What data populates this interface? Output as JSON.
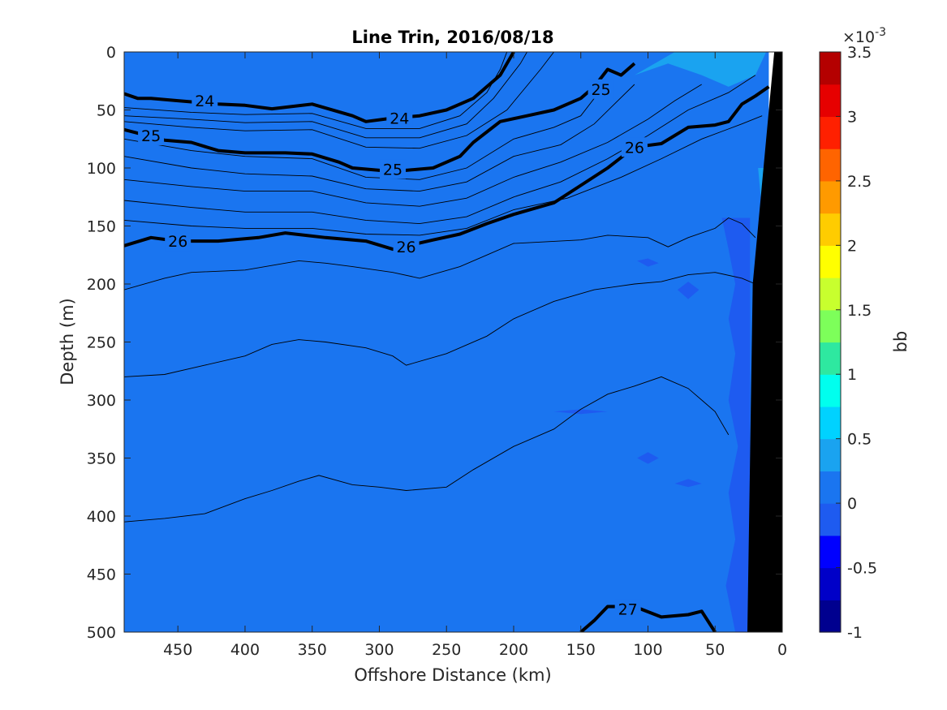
{
  "chart_data": {
    "type": "contour",
    "title": "Line Trin, 2016/08/18",
    "xlabel": "Offshore Distance (km)",
    "ylabel": "Depth (m)",
    "xlim": [
      490,
      0
    ],
    "ylim": [
      0,
      500
    ],
    "x_reversed": true,
    "y_reversed": true,
    "x_ticks": [
      "450",
      "400",
      "350",
      "300",
      "250",
      "200",
      "150",
      "100",
      "50",
      "0"
    ],
    "x_tick_values": [
      450,
      400,
      350,
      300,
      250,
      200,
      150,
      100,
      50,
      0
    ],
    "y_ticks": [
      "0",
      "50",
      "100",
      "150",
      "200",
      "250",
      "300",
      "350",
      "400",
      "450",
      "500"
    ],
    "y_tick_values": [
      0,
      50,
      100,
      150,
      200,
      250,
      300,
      350,
      400,
      450,
      500
    ],
    "background_fill_color": "#1a75f0",
    "colorbar": {
      "label": "bb",
      "exponent_label": "×10",
      "exponent_power": "-3",
      "ticks": [
        "3.5",
        "3",
        "2.5",
        "2",
        "1.5",
        "1",
        "0.5",
        "0",
        "-0.5",
        "-1"
      ],
      "tick_values": [
        3.5,
        3,
        2.5,
        2,
        1.5,
        1,
        0.5,
        0,
        -0.5,
        -1
      ],
      "range": [
        -1,
        3.5
      ],
      "band_colors": [
        "#00008f",
        "#0000c8",
        "#0000ff",
        "#1e5bf0",
        "#1a75f0",
        "#1aa3f0",
        "#00d2ff",
        "#00ffee",
        "#2ee8a0",
        "#7dff5a",
        "#c8ff2e",
        "#ffff00",
        "#ffcc00",
        "#ff9a00",
        "#ff6400",
        "#ff2000",
        "#e60000",
        "#b40000"
      ]
    },
    "bold_isopycnals": [
      {
        "label": "24",
        "points": [
          [
            490,
            36
          ],
          [
            480,
            40
          ],
          [
            470,
            40
          ],
          [
            450,
            42
          ],
          [
            420,
            45
          ],
          [
            400,
            46
          ],
          [
            380,
            49
          ],
          [
            350,
            45
          ],
          [
            320,
            55
          ],
          [
            310,
            60
          ],
          [
            290,
            57
          ],
          [
            270,
            55
          ],
          [
            250,
            50
          ],
          [
            230,
            40
          ],
          [
            210,
            20
          ],
          [
            200,
            0
          ]
        ]
      },
      {
        "label": "25",
        "points": [
          [
            490,
            67
          ],
          [
            480,
            70
          ],
          [
            460,
            76
          ],
          [
            440,
            78
          ],
          [
            420,
            85
          ],
          [
            400,
            87
          ],
          [
            370,
            87
          ],
          [
            350,
            88
          ],
          [
            330,
            95
          ],
          [
            320,
            100
          ],
          [
            300,
            102
          ],
          [
            280,
            102
          ],
          [
            260,
            100
          ],
          [
            240,
            90
          ],
          [
            230,
            78
          ],
          [
            210,
            60
          ],
          [
            190,
            55
          ],
          [
            170,
            50
          ],
          [
            150,
            40
          ],
          [
            140,
            30
          ],
          [
            130,
            15
          ],
          [
            120,
            20
          ],
          [
            110,
            10
          ]
        ]
      },
      {
        "label": "26",
        "points": [
          [
            490,
            167
          ],
          [
            470,
            160
          ],
          [
            450,
            163
          ],
          [
            420,
            163
          ],
          [
            390,
            160
          ],
          [
            370,
            156
          ],
          [
            340,
            160
          ],
          [
            310,
            163
          ],
          [
            290,
            170
          ],
          [
            260,
            162
          ],
          [
            240,
            157
          ],
          [
            220,
            148
          ],
          [
            200,
            140
          ],
          [
            170,
            130
          ],
          [
            150,
            115
          ],
          [
            130,
            100
          ],
          [
            110,
            82
          ],
          [
            90,
            79
          ],
          [
            70,
            65
          ],
          [
            50,
            63
          ],
          [
            40,
            60
          ],
          [
            30,
            45
          ],
          [
            20,
            38
          ],
          [
            10,
            30
          ]
        ]
      },
      {
        "label": "27",
        "points": [
          [
            150,
            500
          ],
          [
            140,
            490
          ],
          [
            130,
            478
          ],
          [
            110,
            478
          ],
          [
            90,
            487
          ],
          [
            70,
            485
          ],
          [
            60,
            482
          ],
          [
            50,
            500
          ]
        ]
      }
    ],
    "thin_isopycnals": [
      [
        [
          490,
          48
        ],
        [
          440,
          52
        ],
        [
          400,
          54
        ],
        [
          350,
          53
        ],
        [
          310,
          66
        ],
        [
          270,
          66
        ],
        [
          240,
          55
        ],
        [
          220,
          35
        ],
        [
          210,
          15
        ],
        [
          205,
          0
        ]
      ],
      [
        [
          490,
          55
        ],
        [
          440,
          58
        ],
        [
          400,
          61
        ],
        [
          350,
          60
        ],
        [
          310,
          74
        ],
        [
          270,
          74
        ],
        [
          235,
          62
        ],
        [
          215,
          40
        ],
        [
          195,
          10
        ],
        [
          190,
          0
        ]
      ],
      [
        [
          490,
          60
        ],
        [
          440,
          65
        ],
        [
          400,
          68
        ],
        [
          350,
          67
        ],
        [
          310,
          82
        ],
        [
          270,
          83
        ],
        [
          235,
          72
        ],
        [
          205,
          50
        ],
        [
          180,
          15
        ],
        [
          170,
          0
        ]
      ],
      [
        [
          490,
          75
        ],
        [
          440,
          85
        ],
        [
          400,
          90
        ],
        [
          350,
          92
        ],
        [
          310,
          108
        ],
        [
          270,
          110
        ],
        [
          235,
          100
        ],
        [
          200,
          75
        ],
        [
          170,
          65
        ],
        [
          150,
          55
        ],
        [
          140,
          40
        ]
      ],
      [
        [
          490,
          90
        ],
        [
          440,
          100
        ],
        [
          400,
          105
        ],
        [
          350,
          107
        ],
        [
          310,
          118
        ],
        [
          270,
          120
        ],
        [
          235,
          112
        ],
        [
          200,
          90
        ],
        [
          165,
          80
        ],
        [
          140,
          62
        ],
        [
          125,
          45
        ],
        [
          110,
          28
        ]
      ],
      [
        [
          490,
          110
        ],
        [
          440,
          116
        ],
        [
          400,
          120
        ],
        [
          350,
          120
        ],
        [
          310,
          130
        ],
        [
          270,
          133
        ],
        [
          235,
          126
        ],
        [
          200,
          108
        ],
        [
          165,
          95
        ],
        [
          130,
          78
        ],
        [
          100,
          58
        ],
        [
          80,
          42
        ],
        [
          60,
          28
        ]
      ],
      [
        [
          490,
          128
        ],
        [
          440,
          134
        ],
        [
          400,
          138
        ],
        [
          350,
          138
        ],
        [
          310,
          145
        ],
        [
          270,
          148
        ],
        [
          235,
          142
        ],
        [
          200,
          125
        ],
        [
          165,
          112
        ],
        [
          130,
          92
        ],
        [
          100,
          72
        ],
        [
          70,
          50
        ],
        [
          40,
          35
        ],
        [
          20,
          20
        ]
      ],
      [
        [
          490,
          145
        ],
        [
          440,
          150
        ],
        [
          400,
          152
        ],
        [
          350,
          152
        ],
        [
          310,
          157
        ],
        [
          270,
          158
        ],
        [
          235,
          152
        ],
        [
          200,
          136
        ],
        [
          160,
          126
        ],
        [
          120,
          108
        ],
        [
          90,
          92
        ],
        [
          60,
          75
        ],
        [
          30,
          62
        ],
        [
          15,
          55
        ]
      ],
      [
        [
          490,
          205
        ],
        [
          460,
          195
        ],
        [
          440,
          190
        ],
        [
          400,
          188
        ],
        [
          360,
          180
        ],
        [
          340,
          182
        ],
        [
          320,
          185
        ],
        [
          290,
          190
        ],
        [
          270,
          195
        ],
        [
          240,
          185
        ],
        [
          220,
          175
        ],
        [
          200,
          165
        ],
        [
          150,
          162
        ],
        [
          130,
          158
        ],
        [
          100,
          160
        ],
        [
          85,
          168
        ],
        [
          70,
          160
        ],
        [
          50,
          152
        ],
        [
          40,
          143
        ],
        [
          30,
          148
        ],
        [
          20,
          160
        ]
      ],
      [
        [
          490,
          280
        ],
        [
          460,
          278
        ],
        [
          430,
          270
        ],
        [
          400,
          262
        ],
        [
          380,
          252
        ],
        [
          360,
          248
        ],
        [
          340,
          250
        ],
        [
          310,
          255
        ],
        [
          290,
          262
        ],
        [
          280,
          270
        ],
        [
          250,
          260
        ],
        [
          220,
          245
        ],
        [
          200,
          230
        ],
        [
          170,
          215
        ],
        [
          140,
          205
        ],
        [
          110,
          200
        ],
        [
          90,
          198
        ],
        [
          70,
          192
        ],
        [
          50,
          190
        ],
        [
          30,
          195
        ],
        [
          20,
          200
        ]
      ],
      [
        [
          490,
          405
        ],
        [
          460,
          402
        ],
        [
          430,
          398
        ],
        [
          400,
          385
        ],
        [
          380,
          378
        ],
        [
          360,
          370
        ],
        [
          345,
          365
        ],
        [
          320,
          373
        ],
        [
          300,
          375
        ],
        [
          280,
          378
        ],
        [
          250,
          375
        ],
        [
          230,
          360
        ],
        [
          200,
          340
        ],
        [
          170,
          325
        ],
        [
          150,
          308
        ],
        [
          130,
          295
        ],
        [
          110,
          288
        ],
        [
          90,
          280
        ],
        [
          70,
          290
        ],
        [
          60,
          300
        ],
        [
          50,
          310
        ],
        [
          40,
          330
        ]
      ]
    ],
    "anomaly_patches": [
      {
        "color": "#1e5bf0",
        "points": [
          [
            45,
            143
          ],
          [
            40,
            170
          ],
          [
            35,
            200
          ],
          [
            40,
            230
          ],
          [
            35,
            260
          ],
          [
            40,
            300
          ],
          [
            33,
            340
          ],
          [
            40,
            380
          ],
          [
            35,
            420
          ],
          [
            42,
            460
          ],
          [
            35,
            500
          ],
          [
            24,
            500
          ],
          [
            24,
            143
          ]
        ]
      },
      {
        "color": "#1aa3f0",
        "points": [
          [
            110,
            20
          ],
          [
            85,
            10
          ],
          [
            60,
            20
          ],
          [
            40,
            30
          ],
          [
            20,
            20
          ],
          [
            12,
            0
          ],
          [
            80,
            0
          ]
        ]
      },
      {
        "color": "#1aa3f0",
        "points": [
          [
            18,
            100
          ],
          [
            14,
            150
          ],
          [
            14,
            200
          ],
          [
            12,
            250
          ],
          [
            15,
            300
          ],
          [
            14,
            360
          ],
          [
            10,
            360
          ],
          [
            10,
            100
          ]
        ]
      },
      {
        "color": "#2ee8a0",
        "points": [
          [
            16,
            330
          ],
          [
            14,
            345
          ],
          [
            12,
            340
          ],
          [
            13,
            325
          ]
        ]
      },
      {
        "color": "#2ee8a0",
        "points": [
          [
            14,
            170
          ],
          [
            12,
            185
          ],
          [
            11,
            178
          ]
        ]
      },
      {
        "color": "#1e5bf0",
        "points": [
          [
            130,
            310
          ],
          [
            150,
            308
          ],
          [
            170,
            310
          ],
          [
            150,
            312
          ]
        ]
      },
      {
        "color": "#1e5bf0",
        "points": [
          [
            100,
            185
          ],
          [
            108,
            180
          ],
          [
            100,
            178
          ],
          [
            92,
            182
          ]
        ]
      },
      {
        "color": "#1e5bf0",
        "points": [
          [
            70,
            213
          ],
          [
            78,
            205
          ],
          [
            70,
            198
          ],
          [
            62,
            205
          ]
        ]
      },
      {
        "color": "#1e5bf0",
        "points": [
          [
            100,
            355
          ],
          [
            108,
            350
          ],
          [
            100,
            345
          ],
          [
            92,
            350
          ]
        ]
      },
      {
        "color": "#1e5bf0",
        "points": [
          [
            70,
            375
          ],
          [
            80,
            372
          ],
          [
            70,
            368
          ],
          [
            60,
            372
          ]
        ]
      }
    ],
    "seafloor_mask": {
      "color": "#000000",
      "points": [
        [
          0,
          0
        ],
        [
          6,
          0
        ],
        [
          22,
          200
        ],
        [
          26,
          500
        ],
        [
          0,
          500
        ]
      ]
    },
    "white_gap": {
      "color": "#ffffff",
      "points": [
        [
          10,
          0
        ],
        [
          0,
          0
        ],
        [
          0,
          10
        ],
        [
          10,
          100
        ]
      ]
    }
  }
}
